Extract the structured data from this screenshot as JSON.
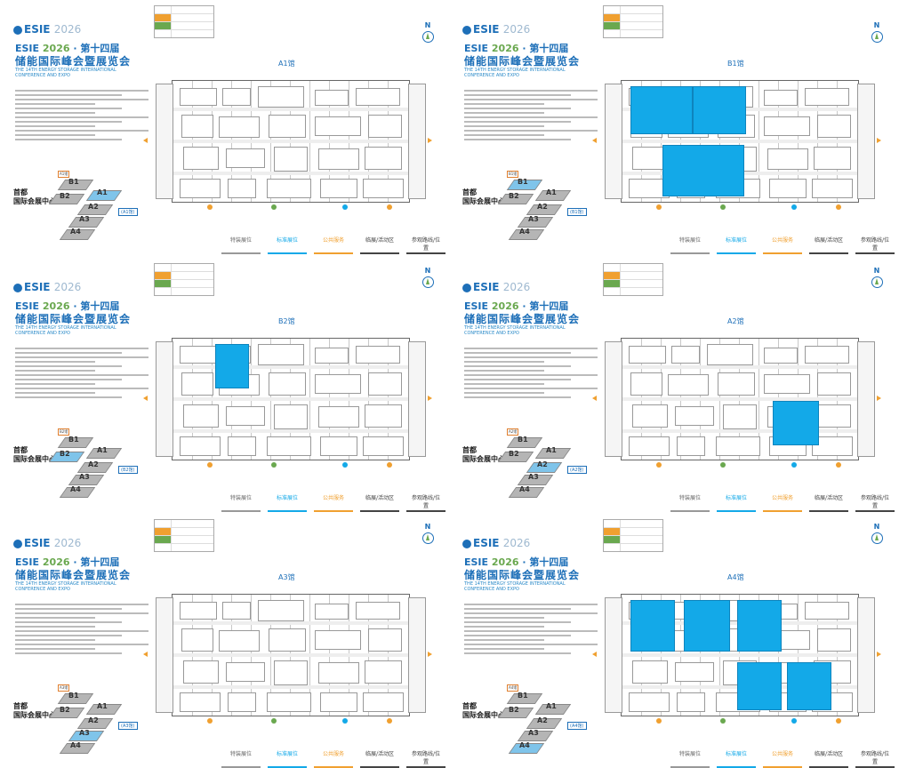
{
  "panels": [
    {
      "id": "A1",
      "hall_title": "A1馆",
      "hall_tag": "A1馆",
      "highlight_label": "(A1馆)",
      "booths": []
    },
    {
      "id": "B1",
      "hall_title": "B1馆",
      "hall_tag": "B1馆",
      "highlight_label": "(B1馆)",
      "booths": [
        "left-top",
        "left-bottom"
      ]
    },
    {
      "id": "B2",
      "hall_title": "B2馆",
      "hall_tag": "B2馆",
      "highlight_label": "(B2馆)",
      "booths": [
        "small-top"
      ]
    },
    {
      "id": "A2",
      "hall_title": "A2馆",
      "hall_tag": "A2馆",
      "highlight_label": "(A2馆)",
      "booths": [
        "right-bottom"
      ]
    },
    {
      "id": "A3",
      "hall_title": "A3馆",
      "hall_tag": "A3馆",
      "highlight_label": "(A3馆)",
      "booths": []
    },
    {
      "id": "A4",
      "hall_title": "A4馆",
      "hall_tag": "A4馆",
      "highlight_label": "(A4馆)",
      "booths": [
        "row-top",
        "row-bottom-right"
      ]
    }
  ],
  "common": {
    "brand": "ESIE",
    "year": "2026",
    "edition": "第十四届",
    "conf_name": "储能国际峰会暨展览会",
    "conf_en": "THE 14TH ENERGY STORAGE INTERNATIONAL CONFERENCE AND EXPO",
    "north": "N",
    "venue_line1": "首都",
    "venue_line2": "国际会展中心",
    "iso_halls": [
      "B1",
      "B2",
      "A1",
      "A2",
      "A3",
      "A4"
    ],
    "legend_items": [
      {
        "label": "特装展位",
        "style": "gray"
      },
      {
        "label": "标准展位",
        "style": "blue"
      },
      {
        "label": "公共服务",
        "style": "orange"
      },
      {
        "label": "临展/活动区",
        "style": "dark"
      },
      {
        "label": "参观路线/位置",
        "style": "dark"
      }
    ]
  },
  "colors": {
    "booth_blue": "#13a9e8",
    "brand_blue": "#1d6fb8",
    "accent_green": "#6aa84f",
    "accent_orange": "#f0a030"
  }
}
